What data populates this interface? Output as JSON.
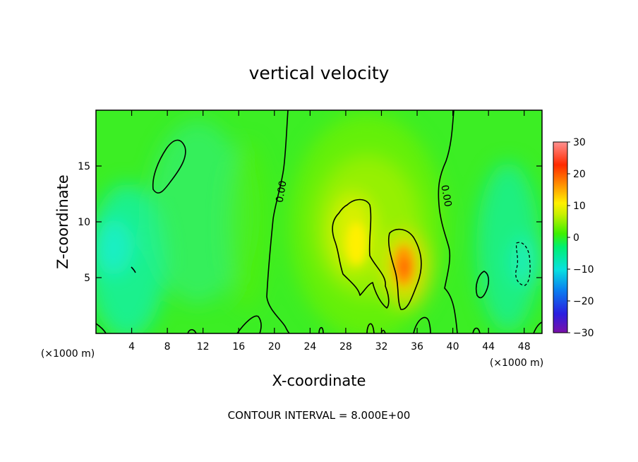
{
  "chart_data": {
    "type": "heatmap",
    "title": "vertical velocity",
    "xlabel": "X-coordinate",
    "ylabel": "Z-coordinate",
    "x_unit_label": "(×1000 m)",
    "x_unit_label_right": "(×1000 m)",
    "xlim": [
      0,
      50
    ],
    "ylim": [
      0,
      20
    ],
    "x_ticks": [
      4,
      8,
      12,
      16,
      20,
      24,
      28,
      32,
      36,
      40,
      44,
      48
    ],
    "y_ticks": [
      5,
      10,
      15
    ],
    "colorbar": {
      "min": -30,
      "max": 30,
      "ticks": [
        30,
        20,
        10,
        0,
        -10,
        -20,
        -30
      ],
      "colors": [
        "#7a10a8",
        "#2a1ee0",
        "#0a7cf0",
        "#08e0e0",
        "#00f070",
        "#3ef000",
        "#c8f000",
        "#fff000",
        "#ff8c00",
        "#ff2a00",
        "#ff9090"
      ]
    },
    "contour_label": "0.00",
    "contour_interval_note": "CONTOUR INTERVAL = 8.000E+00",
    "updrafts": [
      {
        "x": 29.5,
        "z": 9.0,
        "value": 9
      },
      {
        "x": 34.0,
        "z": 6.0,
        "value": 14
      }
    ],
    "downdrafts": [
      {
        "x": 4.0,
        "z": 6.5,
        "value": -9
      },
      {
        "x": 47.0,
        "z": 6.5,
        "value": -10
      }
    ]
  }
}
